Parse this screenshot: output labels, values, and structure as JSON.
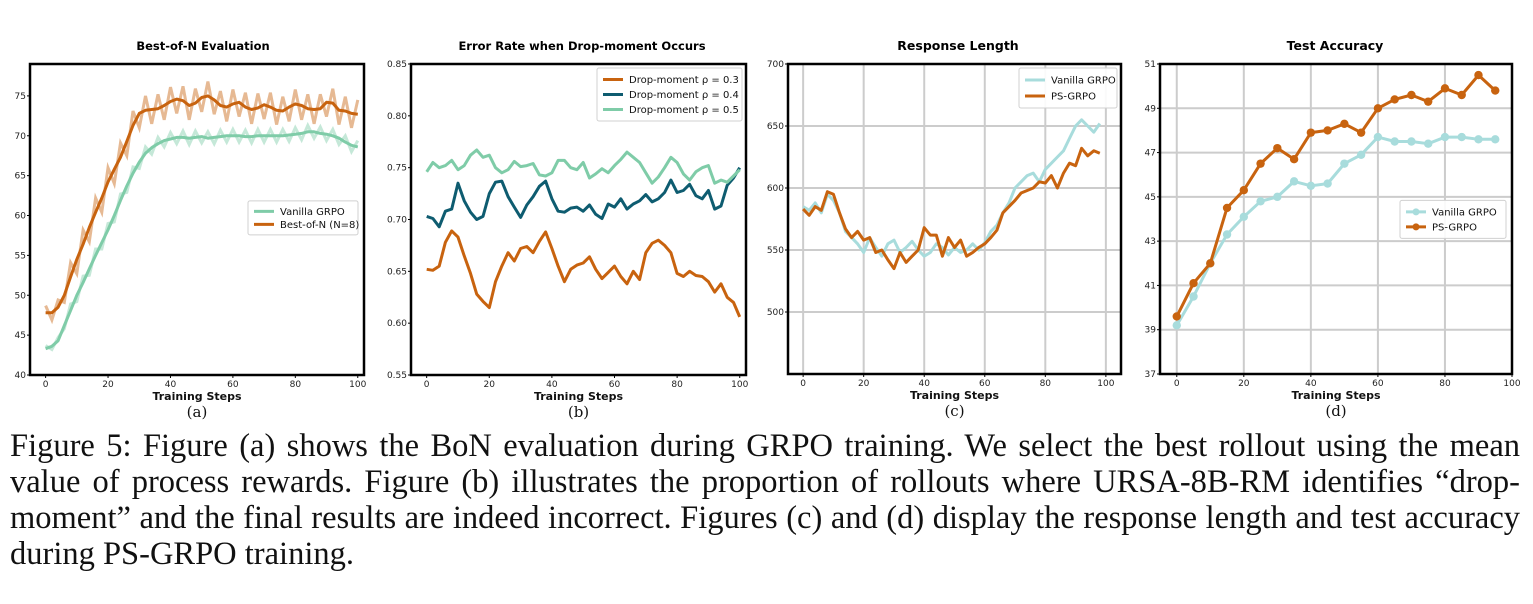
{
  "caption": "Figure 5: Figure (a) shows the BoN evaluation during GRPO training. We select the best rollout using the mean value of process rewards. Figure (b) illustrates the proportion of rollouts where URSA-8B-RM identifies “drop-moment” and the final results are indeed incorrect. Figures (c) and (d) display the response length and test accuracy during PS-GRPO training.",
  "colors": {
    "orange": "#c8630f",
    "teal": "#0e5c70",
    "mint": "#7fcca8",
    "light_teal": "#a8dcdc",
    "light_orange": "#e6b07e"
  },
  "chart_data": [
    {
      "type": "line",
      "title": "Best-of-N Evaluation",
      "sublabel": "(a)",
      "xlabel": "Training Steps",
      "xlim": [
        -5,
        102
      ],
      "ylim": [
        40,
        79
      ],
      "xticks": [
        0,
        20,
        40,
        60,
        80,
        100
      ],
      "yticks": [
        40,
        45,
        50,
        55,
        60,
        65,
        70,
        75
      ],
      "grid": false,
      "legend_position": "center-right",
      "series": [
        {
          "name": "Vanilla GRPO",
          "color": "#7fcca8",
          "x": [
            0,
            2,
            4,
            6,
            8,
            10,
            12,
            14,
            16,
            18,
            20,
            22,
            24,
            26,
            28,
            30,
            32,
            34,
            36,
            38,
            40,
            42,
            44,
            46,
            48,
            50,
            52,
            54,
            56,
            58,
            60,
            62,
            64,
            66,
            68,
            70,
            72,
            74,
            76,
            78,
            80,
            82,
            84,
            86,
            88,
            90,
            92,
            94,
            96,
            98,
            100
          ],
          "y": [
            43.3,
            43.6,
            44.3,
            46.2,
            48.1,
            50.0,
            51.6,
            53.3,
            55.0,
            56.6,
            58.2,
            60.0,
            61.9,
            63.7,
            65.3,
            66.7,
            67.8,
            68.5,
            69.0,
            69.4,
            69.6,
            69.8,
            69.8,
            69.7,
            69.8,
            69.9,
            69.7,
            69.8,
            69.9,
            70.0,
            70.0,
            70.0,
            69.9,
            69.9,
            70.0,
            70.0,
            70.0,
            70.0,
            70.0,
            70.1,
            70.2,
            70.3,
            70.5,
            70.5,
            70.3,
            70.2,
            70.0,
            69.7,
            69.2,
            68.8,
            68.6
          ]
        },
        {
          "name": "Best-of-N (N=8)",
          "color": "#c8630f",
          "x": [
            0,
            2,
            4,
            6,
            8,
            10,
            12,
            14,
            16,
            18,
            20,
            22,
            24,
            26,
            28,
            30,
            32,
            34,
            36,
            38,
            40,
            42,
            44,
            46,
            48,
            50,
            52,
            54,
            56,
            58,
            60,
            62,
            64,
            66,
            68,
            70,
            72,
            74,
            76,
            78,
            80,
            82,
            84,
            86,
            88,
            90,
            92,
            94,
            96,
            98,
            100
          ],
          "y": [
            47.8,
            47.8,
            48.5,
            50.0,
            52.3,
            54.5,
            56.4,
            58.5,
            60.4,
            62.2,
            64.2,
            65.8,
            67.3,
            69.3,
            71.3,
            72.8,
            73.2,
            73.3,
            73.4,
            73.8,
            74.3,
            74.6,
            74.4,
            73.8,
            74.1,
            74.8,
            75.0,
            74.5,
            73.8,
            73.6,
            74.0,
            74.2,
            73.6,
            73.3,
            73.5,
            73.9,
            73.6,
            73.2,
            73.1,
            73.6,
            74.0,
            73.8,
            73.4,
            73.3,
            73.4,
            74.2,
            74.1,
            73.2,
            73.1,
            72.8,
            72.7
          ]
        }
      ]
    },
    {
      "type": "line",
      "title": "Error Rate when Drop-moment Occurs",
      "sublabel": "(b)",
      "xlabel": "Training Steps",
      "xlim": [
        -5,
        102
      ],
      "ylim": [
        0.55,
        0.85
      ],
      "xticks": [
        0,
        20,
        40,
        60,
        80,
        100
      ],
      "yticks": [
        0.55,
        0.6,
        0.65,
        0.7,
        0.75,
        0.8,
        0.85
      ],
      "grid": false,
      "legend_position": "top-right",
      "series": [
        {
          "name": "Drop-moment ρ = 0.3",
          "color": "#c8630f",
          "x": [
            0,
            2,
            4,
            6,
            8,
            10,
            12,
            14,
            16,
            18,
            20,
            22,
            24,
            26,
            28,
            30,
            32,
            34,
            36,
            38,
            40,
            42,
            44,
            46,
            48,
            50,
            52,
            54,
            56,
            58,
            60,
            62,
            64,
            66,
            68,
            70,
            72,
            74,
            76,
            78,
            80,
            82,
            84,
            86,
            88,
            90,
            92,
            94,
            96,
            98,
            100
          ],
          "y": [
            0.652,
            0.651,
            0.655,
            0.678,
            0.689,
            0.683,
            0.665,
            0.648,
            0.628,
            0.621,
            0.615,
            0.64,
            0.655,
            0.668,
            0.66,
            0.672,
            0.674,
            0.668,
            0.679,
            0.688,
            0.672,
            0.655,
            0.64,
            0.652,
            0.656,
            0.658,
            0.664,
            0.652,
            0.643,
            0.649,
            0.655,
            0.645,
            0.638,
            0.65,
            0.642,
            0.668,
            0.677,
            0.68,
            0.675,
            0.668,
            0.648,
            0.645,
            0.65,
            0.646,
            0.645,
            0.64,
            0.63,
            0.638,
            0.625,
            0.62,
            0.606
          ]
        },
        {
          "name": "Drop-moment ρ = 0.4",
          "color": "#0e5c70",
          "x": [
            0,
            2,
            4,
            6,
            8,
            10,
            12,
            14,
            16,
            18,
            20,
            22,
            24,
            26,
            28,
            30,
            32,
            34,
            36,
            38,
            40,
            42,
            44,
            46,
            48,
            50,
            52,
            54,
            56,
            58,
            60,
            62,
            64,
            66,
            68,
            70,
            72,
            74,
            76,
            78,
            80,
            82,
            84,
            86,
            88,
            90,
            92,
            94,
            96,
            98,
            100
          ],
          "y": [
            0.703,
            0.701,
            0.693,
            0.708,
            0.71,
            0.735,
            0.718,
            0.707,
            0.7,
            0.703,
            0.725,
            0.736,
            0.737,
            0.722,
            0.712,
            0.702,
            0.714,
            0.722,
            0.732,
            0.737,
            0.72,
            0.708,
            0.707,
            0.711,
            0.712,
            0.708,
            0.714,
            0.705,
            0.701,
            0.715,
            0.712,
            0.72,
            0.71,
            0.715,
            0.718,
            0.724,
            0.717,
            0.72,
            0.726,
            0.738,
            0.726,
            0.728,
            0.734,
            0.723,
            0.72,
            0.728,
            0.71,
            0.713,
            0.733,
            0.74,
            0.75
          ]
        },
        {
          "name": "Drop-moment ρ = 0.5",
          "color": "#7fcca8",
          "x": [
            0,
            2,
            4,
            6,
            8,
            10,
            12,
            14,
            16,
            18,
            20,
            22,
            24,
            26,
            28,
            30,
            32,
            34,
            36,
            38,
            40,
            42,
            44,
            46,
            48,
            50,
            52,
            54,
            56,
            58,
            60,
            62,
            64,
            66,
            68,
            70,
            72,
            74,
            76,
            78,
            80,
            82,
            84,
            86,
            88,
            90,
            92,
            94,
            96,
            98,
            100
          ],
          "y": [
            0.746,
            0.755,
            0.75,
            0.752,
            0.757,
            0.748,
            0.752,
            0.762,
            0.767,
            0.76,
            0.762,
            0.75,
            0.745,
            0.748,
            0.756,
            0.751,
            0.752,
            0.754,
            0.743,
            0.742,
            0.745,
            0.757,
            0.757,
            0.75,
            0.748,
            0.755,
            0.74,
            0.744,
            0.749,
            0.745,
            0.752,
            0.758,
            0.765,
            0.76,
            0.755,
            0.745,
            0.735,
            0.741,
            0.75,
            0.76,
            0.755,
            0.744,
            0.738,
            0.746,
            0.75,
            0.752,
            0.735,
            0.738,
            0.736,
            0.742,
            0.748
          ]
        }
      ]
    },
    {
      "type": "line",
      "title": "Response Length",
      "sublabel": "(c)",
      "xlabel": "Training Steps",
      "xlim": [
        -5,
        105
      ],
      "ylim": [
        450,
        700
      ],
      "xticks": [
        0,
        20,
        40,
        60,
        80,
        100
      ],
      "yticks": [
        500,
        550,
        600,
        650,
        700
      ],
      "grid": true,
      "legend_position": "top-right",
      "series": [
        {
          "name": "Vanilla GRPO",
          "color": "#a8dcdc",
          "x": [
            0,
            2,
            4,
            6,
            8,
            10,
            12,
            14,
            16,
            18,
            20,
            22,
            24,
            26,
            28,
            30,
            32,
            34,
            36,
            38,
            40,
            42,
            44,
            46,
            48,
            50,
            52,
            54,
            56,
            58,
            60,
            62,
            64,
            66,
            68,
            70,
            72,
            74,
            76,
            78,
            80,
            82,
            84,
            86,
            88,
            90,
            92,
            94,
            96,
            98
          ],
          "y": [
            585,
            582,
            588,
            580,
            595,
            590,
            580,
            565,
            560,
            555,
            548,
            560,
            552,
            545,
            555,
            558,
            548,
            552,
            557,
            550,
            545,
            548,
            555,
            552,
            546,
            552,
            548,
            550,
            555,
            550,
            556,
            565,
            570,
            580,
            588,
            600,
            605,
            610,
            612,
            605,
            615,
            620,
            625,
            630,
            640,
            650,
            655,
            650,
            645,
            652
          ]
        },
        {
          "name": "PS-GRPO",
          "color": "#c8630f",
          "x": [
            0,
            2,
            4,
            6,
            8,
            10,
            12,
            14,
            16,
            18,
            20,
            22,
            24,
            26,
            28,
            30,
            32,
            34,
            36,
            38,
            40,
            42,
            44,
            46,
            48,
            50,
            52,
            54,
            56,
            58,
            60,
            62,
            64,
            66,
            68,
            70,
            72,
            74,
            76,
            78,
            80,
            82,
            84,
            86,
            88,
            90,
            92,
            94,
            96,
            98
          ],
          "y": [
            583,
            578,
            585,
            582,
            597,
            595,
            580,
            567,
            560,
            565,
            558,
            560,
            548,
            550,
            542,
            535,
            548,
            540,
            545,
            550,
            568,
            562,
            562,
            545,
            560,
            552,
            558,
            545,
            548,
            552,
            555,
            560,
            566,
            580,
            585,
            590,
            596,
            598,
            600,
            605,
            604,
            610,
            600,
            612,
            620,
            618,
            632,
            626,
            630,
            628
          ]
        }
      ]
    },
    {
      "type": "line",
      "title": "Test Accuracy",
      "sublabel": "(d)",
      "xlabel": "Training Steps",
      "xlim": [
        -5,
        100
      ],
      "ylim": [
        37,
        51
      ],
      "xticks": [
        0,
        20,
        40,
        60,
        80,
        100
      ],
      "yticks": [
        37,
        39,
        41,
        43,
        45,
        47,
        49,
        51
      ],
      "grid": true,
      "legend_position": "center-right",
      "series": [
        {
          "name": "Vanilla GRPO",
          "color": "#a8dcdc",
          "x": [
            0,
            5,
            10,
            15,
            20,
            25,
            30,
            35,
            40,
            45,
            50,
            55,
            60,
            65,
            70,
            75,
            80,
            85,
            90,
            95
          ],
          "y": [
            39.2,
            40.5,
            42.0,
            43.3,
            44.1,
            44.8,
            45.0,
            45.7,
            45.5,
            45.6,
            46.5,
            46.9,
            47.7,
            47.5,
            47.5,
            47.4,
            47.7,
            47.7,
            47.6,
            47.6
          ]
        },
        {
          "name": "PS-GRPO",
          "color": "#c8630f",
          "x": [
            0,
            5,
            10,
            15,
            20,
            25,
            30,
            35,
            40,
            45,
            50,
            55,
            60,
            65,
            70,
            75,
            80,
            85,
            90,
            95
          ],
          "y": [
            39.6,
            41.1,
            42.0,
            44.5,
            45.3,
            46.5,
            47.2,
            46.7,
            47.9,
            48.0,
            48.3,
            47.9,
            49.0,
            49.4,
            49.6,
            49.3,
            49.9,
            49.6,
            50.5,
            49.8
          ]
        }
      ]
    }
  ]
}
